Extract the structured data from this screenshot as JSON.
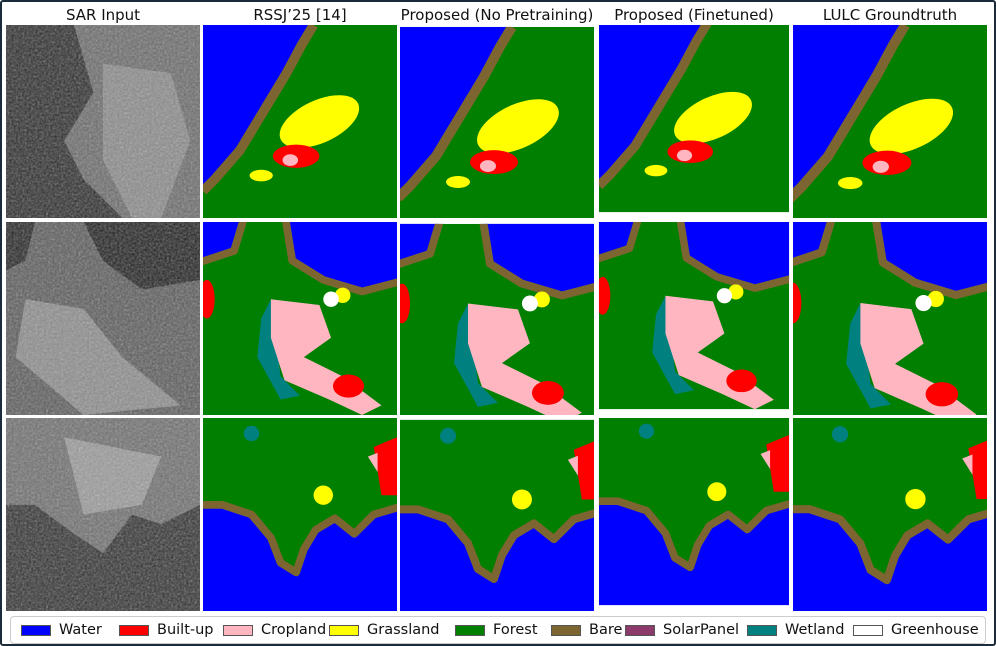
{
  "columns": [
    "SAR Input",
    "RSSJ’25 [14]",
    "Proposed (No Pretraining)",
    "Proposed (Finetuned)",
    "LULC Groundtruth"
  ],
  "legend": [
    {
      "label": "Water",
      "color": "#0000ff"
    },
    {
      "label": "Built-up",
      "color": "#ff0000"
    },
    {
      "label": "Cropland",
      "color": "#ffb6c1"
    },
    {
      "label": "Grassland",
      "color": "#ffff00"
    },
    {
      "label": "Forest",
      "color": "#007f00"
    },
    {
      "label": "Bare",
      "color": "#7d6532"
    },
    {
      "label": "SolarPanel",
      "color": "#8b3a6a"
    },
    {
      "label": "Wetland",
      "color": "#00807f"
    },
    {
      "label": "Greenhouse",
      "color": "#ffffff"
    }
  ]
}
